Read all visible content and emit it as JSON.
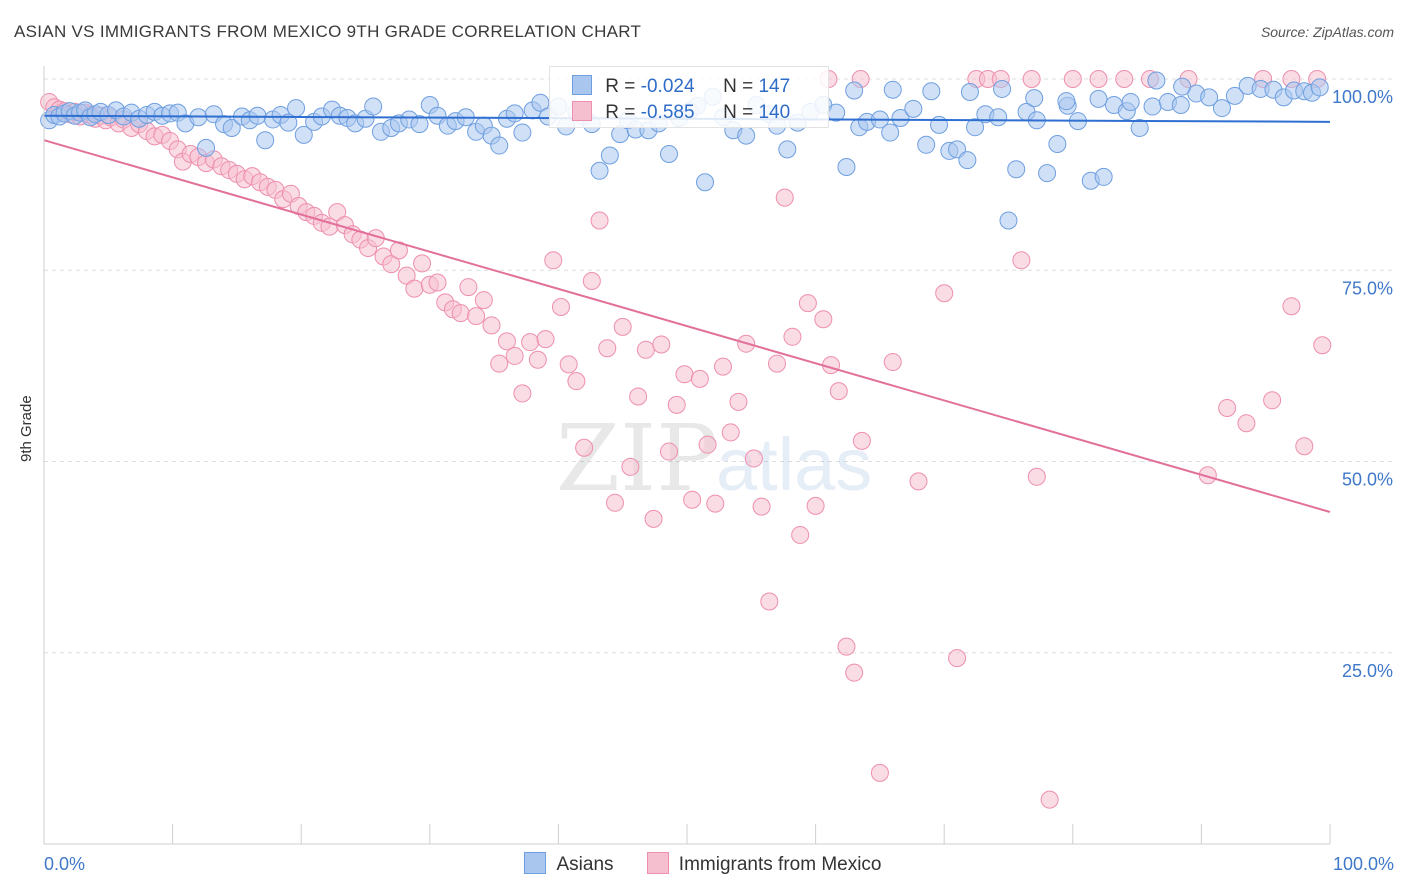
{
  "header": {
    "title": "ASIAN VS IMMIGRANTS FROM MEXICO 9TH GRADE CORRELATION CHART",
    "source": "Source: ZipAtlas.com"
  },
  "watermark": {
    "zip": "ZIP",
    "atlas": "atlas"
  },
  "colors": {
    "blue_fill": "#a9c6ee",
    "blue_stroke": "#6f9fe0",
    "blue_line": "#2f6fd1",
    "pink_fill": "#f6bfd0",
    "pink_stroke": "#ee8fad",
    "pink_line": "#e2709a",
    "tick_text": "#3f78c9",
    "grid": "#dddddd"
  },
  "stats_legend": {
    "asians": {
      "r_label": "R = ",
      "r_value": "-0.024",
      "n_label": "N = ",
      "n_value": "147"
    },
    "mexico": {
      "r_label": "R = ",
      "r_value": "-0.585",
      "n_label": "N = ",
      "n_value": "140"
    }
  },
  "legend": {
    "asians": "Asians",
    "mexico": "Immigrants from Mexico"
  },
  "chart_data": {
    "type": "scatter",
    "title": "ASIAN VS IMMIGRANTS FROM MEXICO 9TH GRADE CORRELATION CHART",
    "xlabel": "",
    "ylabel": "9th Grade",
    "xlim": [
      0,
      100
    ],
    "ylim": [
      0,
      100
    ],
    "x_tick_labels": [
      "0.0%",
      "100.0%"
    ],
    "y_ticks": [
      25,
      50,
      75,
      100
    ],
    "y_tick_labels": [
      "25.0%",
      "50.0%",
      "75.0%",
      "100.0%"
    ],
    "grid": true,
    "legend_position": "bottom",
    "series": [
      {
        "name": "Asians",
        "r": -0.024,
        "n": 147,
        "trend": {
          "x": [
            0,
            100
          ],
          "y": [
            95.2,
            94.4
          ]
        },
        "points": [
          [
            0.4,
            94.6
          ],
          [
            0.8,
            95.3
          ],
          [
            1.2,
            95.1
          ],
          [
            1.6,
            95.5
          ],
          [
            2.0,
            95.8
          ],
          [
            2.4,
            95.2
          ],
          [
            2.8,
            95.6
          ],
          [
            3.2,
            95.9
          ],
          [
            3.6,
            95.0
          ],
          [
            4.0,
            95.4
          ],
          [
            4.4,
            95.7
          ],
          [
            5.0,
            95.3
          ],
          [
            5.6,
            95.9
          ],
          [
            6.2,
            95.1
          ],
          [
            6.8,
            95.6
          ],
          [
            7.4,
            94.8
          ],
          [
            8.0,
            95.3
          ],
          [
            8.6,
            95.7
          ],
          [
            9.2,
            95.2
          ],
          [
            9.8,
            95.5
          ],
          [
            10.4,
            95.6
          ],
          [
            11.0,
            94.2
          ],
          [
            12.0,
            95.0
          ],
          [
            12.6,
            91.0
          ],
          [
            13.2,
            95.4
          ],
          [
            14.0,
            94.1
          ],
          [
            14.6,
            93.6
          ],
          [
            15.4,
            95.1
          ],
          [
            16.0,
            94.6
          ],
          [
            16.6,
            95.2
          ],
          [
            17.2,
            92.0
          ],
          [
            17.8,
            94.7
          ],
          [
            18.4,
            95.3
          ],
          [
            19.0,
            94.3
          ],
          [
            19.6,
            96.2
          ],
          [
            20.2,
            92.7
          ],
          [
            21.0,
            94.4
          ],
          [
            21.6,
            95.1
          ],
          [
            22.4,
            96.0
          ],
          [
            23.0,
            95.2
          ],
          [
            23.6,
            94.9
          ],
          [
            24.2,
            94.2
          ],
          [
            25.0,
            94.8
          ],
          [
            25.6,
            96.4
          ],
          [
            26.2,
            93.1
          ],
          [
            27.0,
            93.6
          ],
          [
            27.6,
            94.2
          ],
          [
            28.4,
            94.7
          ],
          [
            29.2,
            94.1
          ],
          [
            30.0,
            96.6
          ],
          [
            30.6,
            95.2
          ],
          [
            31.4,
            93.9
          ],
          [
            32.0,
            94.5
          ],
          [
            32.8,
            95.0
          ],
          [
            33.6,
            93.1
          ],
          [
            34.2,
            93.9
          ],
          [
            34.8,
            92.6
          ],
          [
            35.4,
            91.3
          ],
          [
            36.0,
            94.8
          ],
          [
            36.6,
            95.5
          ],
          [
            37.2,
            93.0
          ],
          [
            38.0,
            95.9
          ],
          [
            38.6,
            96.9
          ],
          [
            39.2,
            95.1
          ],
          [
            40.0,
            96.4
          ],
          [
            40.6,
            93.8
          ],
          [
            41.4,
            95.7
          ],
          [
            42.0,
            95.1
          ],
          [
            42.6,
            94.1
          ],
          [
            43.2,
            88.0
          ],
          [
            44.0,
            90.0
          ],
          [
            44.8,
            92.8
          ],
          [
            45.4,
            94.6
          ],
          [
            46.0,
            93.4
          ],
          [
            47.0,
            93.3
          ],
          [
            47.8,
            94.2
          ],
          [
            48.6,
            90.2
          ],
          [
            49.4,
            94.9
          ],
          [
            50.2,
            95.8
          ],
          [
            50.8,
            96.5
          ],
          [
            51.4,
            86.5
          ],
          [
            52.0,
            97.7
          ],
          [
            52.8,
            95.0
          ],
          [
            53.6,
            93.3
          ],
          [
            54.6,
            92.6
          ],
          [
            55.4,
            96.6
          ],
          [
            56.4,
            95.4
          ],
          [
            57.0,
            93.9
          ],
          [
            57.8,
            90.8
          ],
          [
            58.6,
            94.3
          ],
          [
            59.6,
            95.7
          ],
          [
            60.6,
            96.6
          ],
          [
            61.6,
            95.6
          ],
          [
            62.4,
            88.5
          ],
          [
            63.4,
            93.7
          ],
          [
            64.0,
            94.4
          ],
          [
            65.0,
            94.7
          ],
          [
            65.8,
            93.0
          ],
          [
            66.6,
            94.9
          ],
          [
            67.6,
            96.1
          ],
          [
            68.6,
            91.4
          ],
          [
            69.6,
            94.0
          ],
          [
            70.4,
            90.6
          ],
          [
            71.0,
            90.8
          ],
          [
            71.8,
            89.4
          ],
          [
            72.4,
            93.7
          ],
          [
            73.2,
            95.4
          ],
          [
            74.2,
            95.0
          ],
          [
            75.0,
            81.5
          ],
          [
            75.6,
            88.2
          ],
          [
            76.4,
            95.7
          ],
          [
            77.2,
            94.6
          ],
          [
            78.0,
            87.7
          ],
          [
            78.8,
            91.5
          ],
          [
            79.6,
            96.5
          ],
          [
            80.4,
            94.5
          ],
          [
            81.4,
            86.7
          ],
          [
            82.4,
            87.2
          ],
          [
            83.2,
            96.6
          ],
          [
            84.2,
            95.8
          ],
          [
            85.2,
            93.6
          ],
          [
            86.2,
            96.4
          ],
          [
            87.4,
            97.0
          ],
          [
            88.4,
            96.6
          ],
          [
            89.6,
            98.1
          ],
          [
            90.6,
            97.6
          ],
          [
            91.6,
            96.2
          ],
          [
            92.6,
            97.8
          ],
          [
            93.6,
            99.1
          ],
          [
            94.6,
            98.7
          ],
          [
            95.6,
            98.6
          ],
          [
            96.4,
            97.6
          ],
          [
            97.2,
            98.5
          ],
          [
            98.0,
            98.4
          ],
          [
            98.6,
            98.2
          ],
          [
            99.2,
            98.9
          ],
          [
            63.0,
            98.5
          ],
          [
            66.0,
            98.6
          ],
          [
            69.0,
            98.4
          ],
          [
            72.0,
            98.3
          ],
          [
            74.5,
            98.7
          ],
          [
            77.0,
            97.5
          ],
          [
            79.5,
            97.1
          ],
          [
            82.0,
            97.4
          ],
          [
            84.5,
            97.0
          ],
          [
            86.5,
            99.8
          ],
          [
            88.5,
            99.0
          ]
        ]
      },
      {
        "name": "Immigrants from Mexico",
        "r": -0.585,
        "n": 140,
        "trend": {
          "x": [
            0,
            100
          ],
          "y": [
            92.0,
            43.4
          ]
        },
        "points": [
          [
            0.4,
            97.0
          ],
          [
            0.8,
            96.3
          ],
          [
            1.2,
            96.0
          ],
          [
            1.6,
            95.8
          ],
          [
            2.0,
            95.4
          ],
          [
            2.4,
            95.7
          ],
          [
            2.8,
            95.1
          ],
          [
            3.2,
            95.6
          ],
          [
            3.6,
            95.3
          ],
          [
            4.0,
            94.8
          ],
          [
            4.4,
            95.2
          ],
          [
            4.8,
            94.6
          ],
          [
            5.2,
            95.0
          ],
          [
            5.8,
            94.2
          ],
          [
            6.2,
            94.7
          ],
          [
            6.8,
            93.6
          ],
          [
            7.4,
            94.1
          ],
          [
            8.0,
            93.2
          ],
          [
            8.6,
            92.5
          ],
          [
            9.2,
            92.7
          ],
          [
            9.8,
            91.9
          ],
          [
            10.4,
            90.8
          ],
          [
            10.8,
            89.2
          ],
          [
            11.4,
            90.2
          ],
          [
            12.0,
            89.8
          ],
          [
            12.6,
            89.0
          ],
          [
            13.2,
            89.5
          ],
          [
            13.8,
            88.6
          ],
          [
            14.4,
            88.1
          ],
          [
            15.0,
            87.6
          ],
          [
            15.6,
            86.9
          ],
          [
            16.2,
            87.3
          ],
          [
            16.8,
            86.5
          ],
          [
            17.4,
            85.9
          ],
          [
            18.0,
            85.5
          ],
          [
            18.6,
            84.3
          ],
          [
            19.2,
            85.0
          ],
          [
            19.8,
            83.4
          ],
          [
            20.4,
            82.6
          ],
          [
            21.0,
            82.1
          ],
          [
            21.6,
            81.2
          ],
          [
            22.2,
            80.7
          ],
          [
            22.8,
            82.6
          ],
          [
            23.4,
            80.9
          ],
          [
            24.0,
            79.7
          ],
          [
            24.6,
            79.0
          ],
          [
            25.2,
            77.9
          ],
          [
            25.8,
            79.2
          ],
          [
            26.4,
            76.8
          ],
          [
            27.0,
            75.8
          ],
          [
            27.6,
            77.6
          ],
          [
            28.2,
            74.3
          ],
          [
            28.8,
            72.6
          ],
          [
            29.4,
            75.9
          ],
          [
            30.0,
            73.1
          ],
          [
            30.6,
            73.4
          ],
          [
            31.2,
            70.8
          ],
          [
            31.8,
            69.9
          ],
          [
            32.4,
            69.4
          ],
          [
            33.0,
            72.8
          ],
          [
            33.6,
            69.0
          ],
          [
            34.2,
            71.1
          ],
          [
            34.8,
            67.8
          ],
          [
            35.4,
            62.8
          ],
          [
            36.0,
            65.7
          ],
          [
            36.6,
            63.8
          ],
          [
            37.2,
            58.9
          ],
          [
            37.8,
            65.6
          ],
          [
            38.4,
            63.3
          ],
          [
            39.0,
            66.0
          ],
          [
            39.6,
            76.3
          ],
          [
            40.2,
            70.2
          ],
          [
            40.8,
            62.7
          ],
          [
            41.4,
            60.5
          ],
          [
            42.0,
            51.8
          ],
          [
            42.6,
            73.6
          ],
          [
            43.2,
            81.5
          ],
          [
            43.8,
            64.8
          ],
          [
            44.4,
            44.6
          ],
          [
            45.0,
            67.6
          ],
          [
            45.6,
            49.3
          ],
          [
            46.2,
            58.5
          ],
          [
            46.8,
            64.6
          ],
          [
            47.4,
            42.5
          ],
          [
            48.0,
            65.3
          ],
          [
            48.6,
            51.3
          ],
          [
            49.2,
            57.4
          ],
          [
            49.8,
            61.4
          ],
          [
            50.4,
            45.0
          ],
          [
            51.0,
            60.8
          ],
          [
            51.6,
            52.2
          ],
          [
            52.2,
            44.5
          ],
          [
            52.8,
            62.4
          ],
          [
            53.4,
            53.8
          ],
          [
            54.0,
            57.8
          ],
          [
            54.6,
            65.4
          ],
          [
            55.2,
            50.4
          ],
          [
            55.8,
            44.1
          ],
          [
            56.4,
            31.7
          ],
          [
            57.0,
            62.8
          ],
          [
            57.6,
            84.5
          ],
          [
            58.2,
            66.3
          ],
          [
            58.8,
            40.4
          ],
          [
            59.4,
            70.7
          ],
          [
            60.0,
            44.2
          ],
          [
            60.6,
            68.6
          ],
          [
            61.2,
            62.6
          ],
          [
            61.8,
            59.2
          ],
          [
            62.4,
            25.8
          ],
          [
            63.0,
            22.4
          ],
          [
            63.6,
            52.7
          ],
          [
            65.0,
            9.3
          ],
          [
            66.0,
            63.0
          ],
          [
            68.0,
            47.4
          ],
          [
            70.0,
            72.0
          ],
          [
            71.0,
            24.3
          ],
          [
            72.5,
            100.0
          ],
          [
            73.4,
            100.0
          ],
          [
            74.4,
            100.0
          ],
          [
            76.0,
            76.3
          ],
          [
            77.2,
            48.0
          ],
          [
            78.2,
            5.8
          ],
          [
            80.0,
            100.0
          ],
          [
            82.0,
            100.0
          ],
          [
            84.0,
            100.0
          ],
          [
            86.0,
            100.0
          ],
          [
            89.0,
            100.0
          ],
          [
            90.5,
            48.2
          ],
          [
            92.0,
            57.0
          ],
          [
            93.5,
            55.0
          ],
          [
            95.5,
            58.0
          ],
          [
            97.0,
            70.3
          ],
          [
            98.0,
            52.0
          ],
          [
            99.4,
            65.2
          ],
          [
            61.0,
            100.0
          ],
          [
            63.5,
            100.0
          ],
          [
            76.8,
            100.0
          ],
          [
            94.8,
            100.0
          ],
          [
            97.0,
            100.0
          ],
          [
            99.0,
            100.0
          ]
        ]
      }
    ]
  }
}
